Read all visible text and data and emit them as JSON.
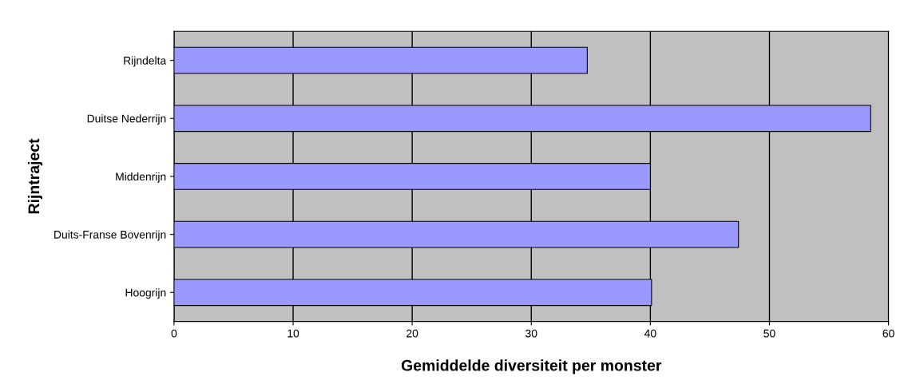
{
  "chart_data": {
    "type": "bar",
    "orientation": "horizontal",
    "xlabel": "Gemiddelde diversiteit per monster",
    "ylabel": "Rijntraject",
    "categories": [
      "Rijndelta",
      "Duitse Nederrijn",
      "Middenrijn",
      "Duits-Franse Bovenrijn",
      "Hoogrijn"
    ],
    "values": [
      34.7,
      58.5,
      40,
      47.4,
      40.1
    ],
    "color": "#9999ff",
    "xlim": [
      0,
      60
    ],
    "xticks": [
      0,
      10,
      20,
      30,
      40,
      50,
      60
    ],
    "grid": "x",
    "legend": false
  }
}
